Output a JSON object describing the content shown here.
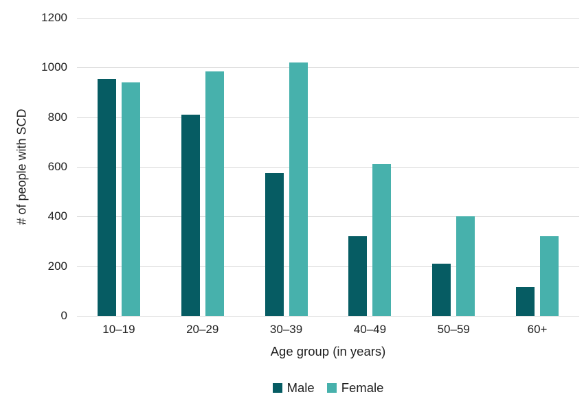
{
  "chart_data": {
    "type": "bar",
    "title": "",
    "categories": [
      "10–19",
      "20–29",
      "30–39",
      "40–49",
      "50–59",
      "60+"
    ],
    "series": [
      {
        "name": "Male",
        "color": "#065c63",
        "values": [
          955,
          810,
          575,
          320,
          210,
          115
        ]
      },
      {
        "name": "Female",
        "color": "#47b1ac",
        "values": [
          940,
          985,
          1020,
          610,
          400,
          320
        ]
      }
    ],
    "xlabel": "Age group (in years)",
    "ylabel": "# of people with SCD",
    "ylim": [
      0,
      1200
    ],
    "ytick_step": 200,
    "grid": true,
    "gridline_color": "#d9d9d9",
    "legend_position": "bottom"
  }
}
